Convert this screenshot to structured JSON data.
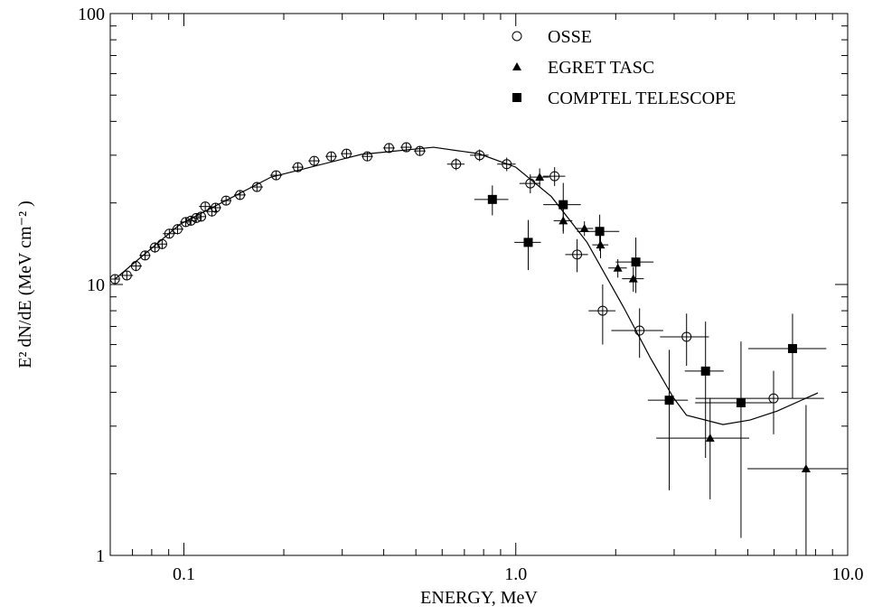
{
  "chart_data": {
    "type": "scatter",
    "xlabel": "ENERGY, MeV",
    "ylabel": "E² dN/dE (MeV cm⁻² )",
    "xlog": true,
    "ylog": true,
    "xlim": [
      0.06,
      10
    ],
    "ylim": [
      1,
      100
    ],
    "xticks": [
      0.1,
      {
        "value": 1,
        "label": "1.0"
      },
      {
        "value": 10,
        "label": "10.0"
      }
    ],
    "yticks": [
      1,
      10,
      100
    ],
    "legend": "upper right",
    "series": [
      {
        "name": "OSSE",
        "color": "#000000",
        "marker": "circle-open",
        "x": [
          0.062,
          0.0673,
          0.0717,
          0.0764,
          0.0818,
          0.086,
          0.0904,
          0.0957,
          0.1013,
          0.105,
          0.109,
          0.1127,
          0.116,
          0.1215,
          0.1246,
          0.134,
          0.1476,
          0.166,
          0.1897,
          0.2205,
          0.247,
          0.278,
          0.309,
          0.357,
          0.415,
          0.468,
          0.514,
          0.661,
          0.778,
          0.939,
          1.106,
          1.309,
          1.53,
          1.827,
          2.36,
          3.27,
          5.98
        ],
        "values": [
          10.47,
          10.8,
          11.7,
          12.8,
          13.7,
          14.1,
          15.4,
          16.0,
          17.0,
          17.2,
          17.6,
          17.8,
          19.4,
          18.6,
          19.2,
          20.4,
          21.4,
          22.9,
          25.3,
          27.1,
          28.6,
          29.7,
          30.4,
          29.7,
          31.9,
          32.1,
          31.1,
          27.8,
          30.0,
          27.8,
          23.6,
          25.1,
          12.9,
          8.0,
          6.76,
          6.41,
          3.8
        ],
        "xerr": [
          0.002,
          0.003,
          0.003,
          0.003,
          0.003,
          0.003,
          0.004,
          0.004,
          0.004,
          0.004,
          0.004,
          0.004,
          0.005,
          0.005,
          0.005,
          0.005,
          0.006,
          0.007,
          0.008,
          0.009,
          0.01,
          0.011,
          0.012,
          0.014,
          0.017,
          0.019,
          0.021,
          0.04,
          0.05,
          0.06,
          0.08,
          0.1,
          0.12,
          0.17,
          0.42,
          0.55,
          2.5
        ],
        "yerr": [
          0.4,
          0.4,
          0.5,
          0.5,
          0.6,
          0.6,
          0.6,
          0.7,
          0.7,
          0.7,
          0.7,
          0.7,
          0.8,
          0.8,
          0.8,
          0.8,
          0.9,
          0.9,
          1.0,
          1.1,
          1.1,
          1.2,
          1.2,
          1.2,
          1.3,
          1.3,
          1.3,
          1.4,
          1.5,
          1.6,
          1.9,
          2.0,
          1.8,
          2.0,
          1.4,
          1.4,
          1.0
        ]
      },
      {
        "name": "EGRET TASC",
        "color": "#000000",
        "marker": "triangle",
        "x": [
          1.18,
          1.39,
          1.61,
          1.8,
          2.03,
          2.26,
          3.85,
          7.49
        ],
        "values": [
          24.9,
          17.2,
          16.1,
          14.0,
          11.5,
          10.5,
          2.71,
          2.09
        ],
        "xerr": [
          0.08,
          0.09,
          0.1,
          0.1,
          0.13,
          0.17,
          1.2,
          2.5
        ],
        "yerr": [
          1.9,
          1.8,
          1.0,
          1.5,
          0.9,
          1.1,
          1.1,
          1.5
        ]
      },
      {
        "name": "COMPTEL TELESCOPE",
        "color": "#000000",
        "marker": "square",
        "x": [
          0.85,
          1.09,
          1.39,
          1.79,
          2.3,
          2.9,
          3.73,
          4.77,
          6.82
        ],
        "values": [
          20.6,
          14.3,
          19.7,
          15.7,
          12.1,
          3.74,
          4.79,
          3.66,
          5.8
        ],
        "xerr": [
          0.1,
          0.1,
          0.18,
          0.26,
          0.3,
          0.4,
          0.5,
          1.3,
          1.8
        ],
        "yerr": [
          2.6,
          3.0,
          4.0,
          2.4,
          2.8,
          2.0,
          2.5,
          2.5,
          2.0
        ]
      }
    ],
    "curve": {
      "color": "#000000",
      "x": [
        0.062,
        0.0975,
        0.183,
        0.342,
        0.565,
        0.773,
        1.0,
        1.28,
        1.64,
        2.11,
        2.55,
        2.98,
        3.27,
        4.21,
        5.08,
        6.13,
        8.13
      ],
      "values": [
        10.47,
        16.7,
        24.9,
        30.2,
        32.1,
        30.4,
        27.1,
        21.1,
        14.3,
        8.26,
        5.33,
        3.83,
        3.29,
        3.04,
        3.16,
        3.41,
        3.98
      ]
    }
  }
}
